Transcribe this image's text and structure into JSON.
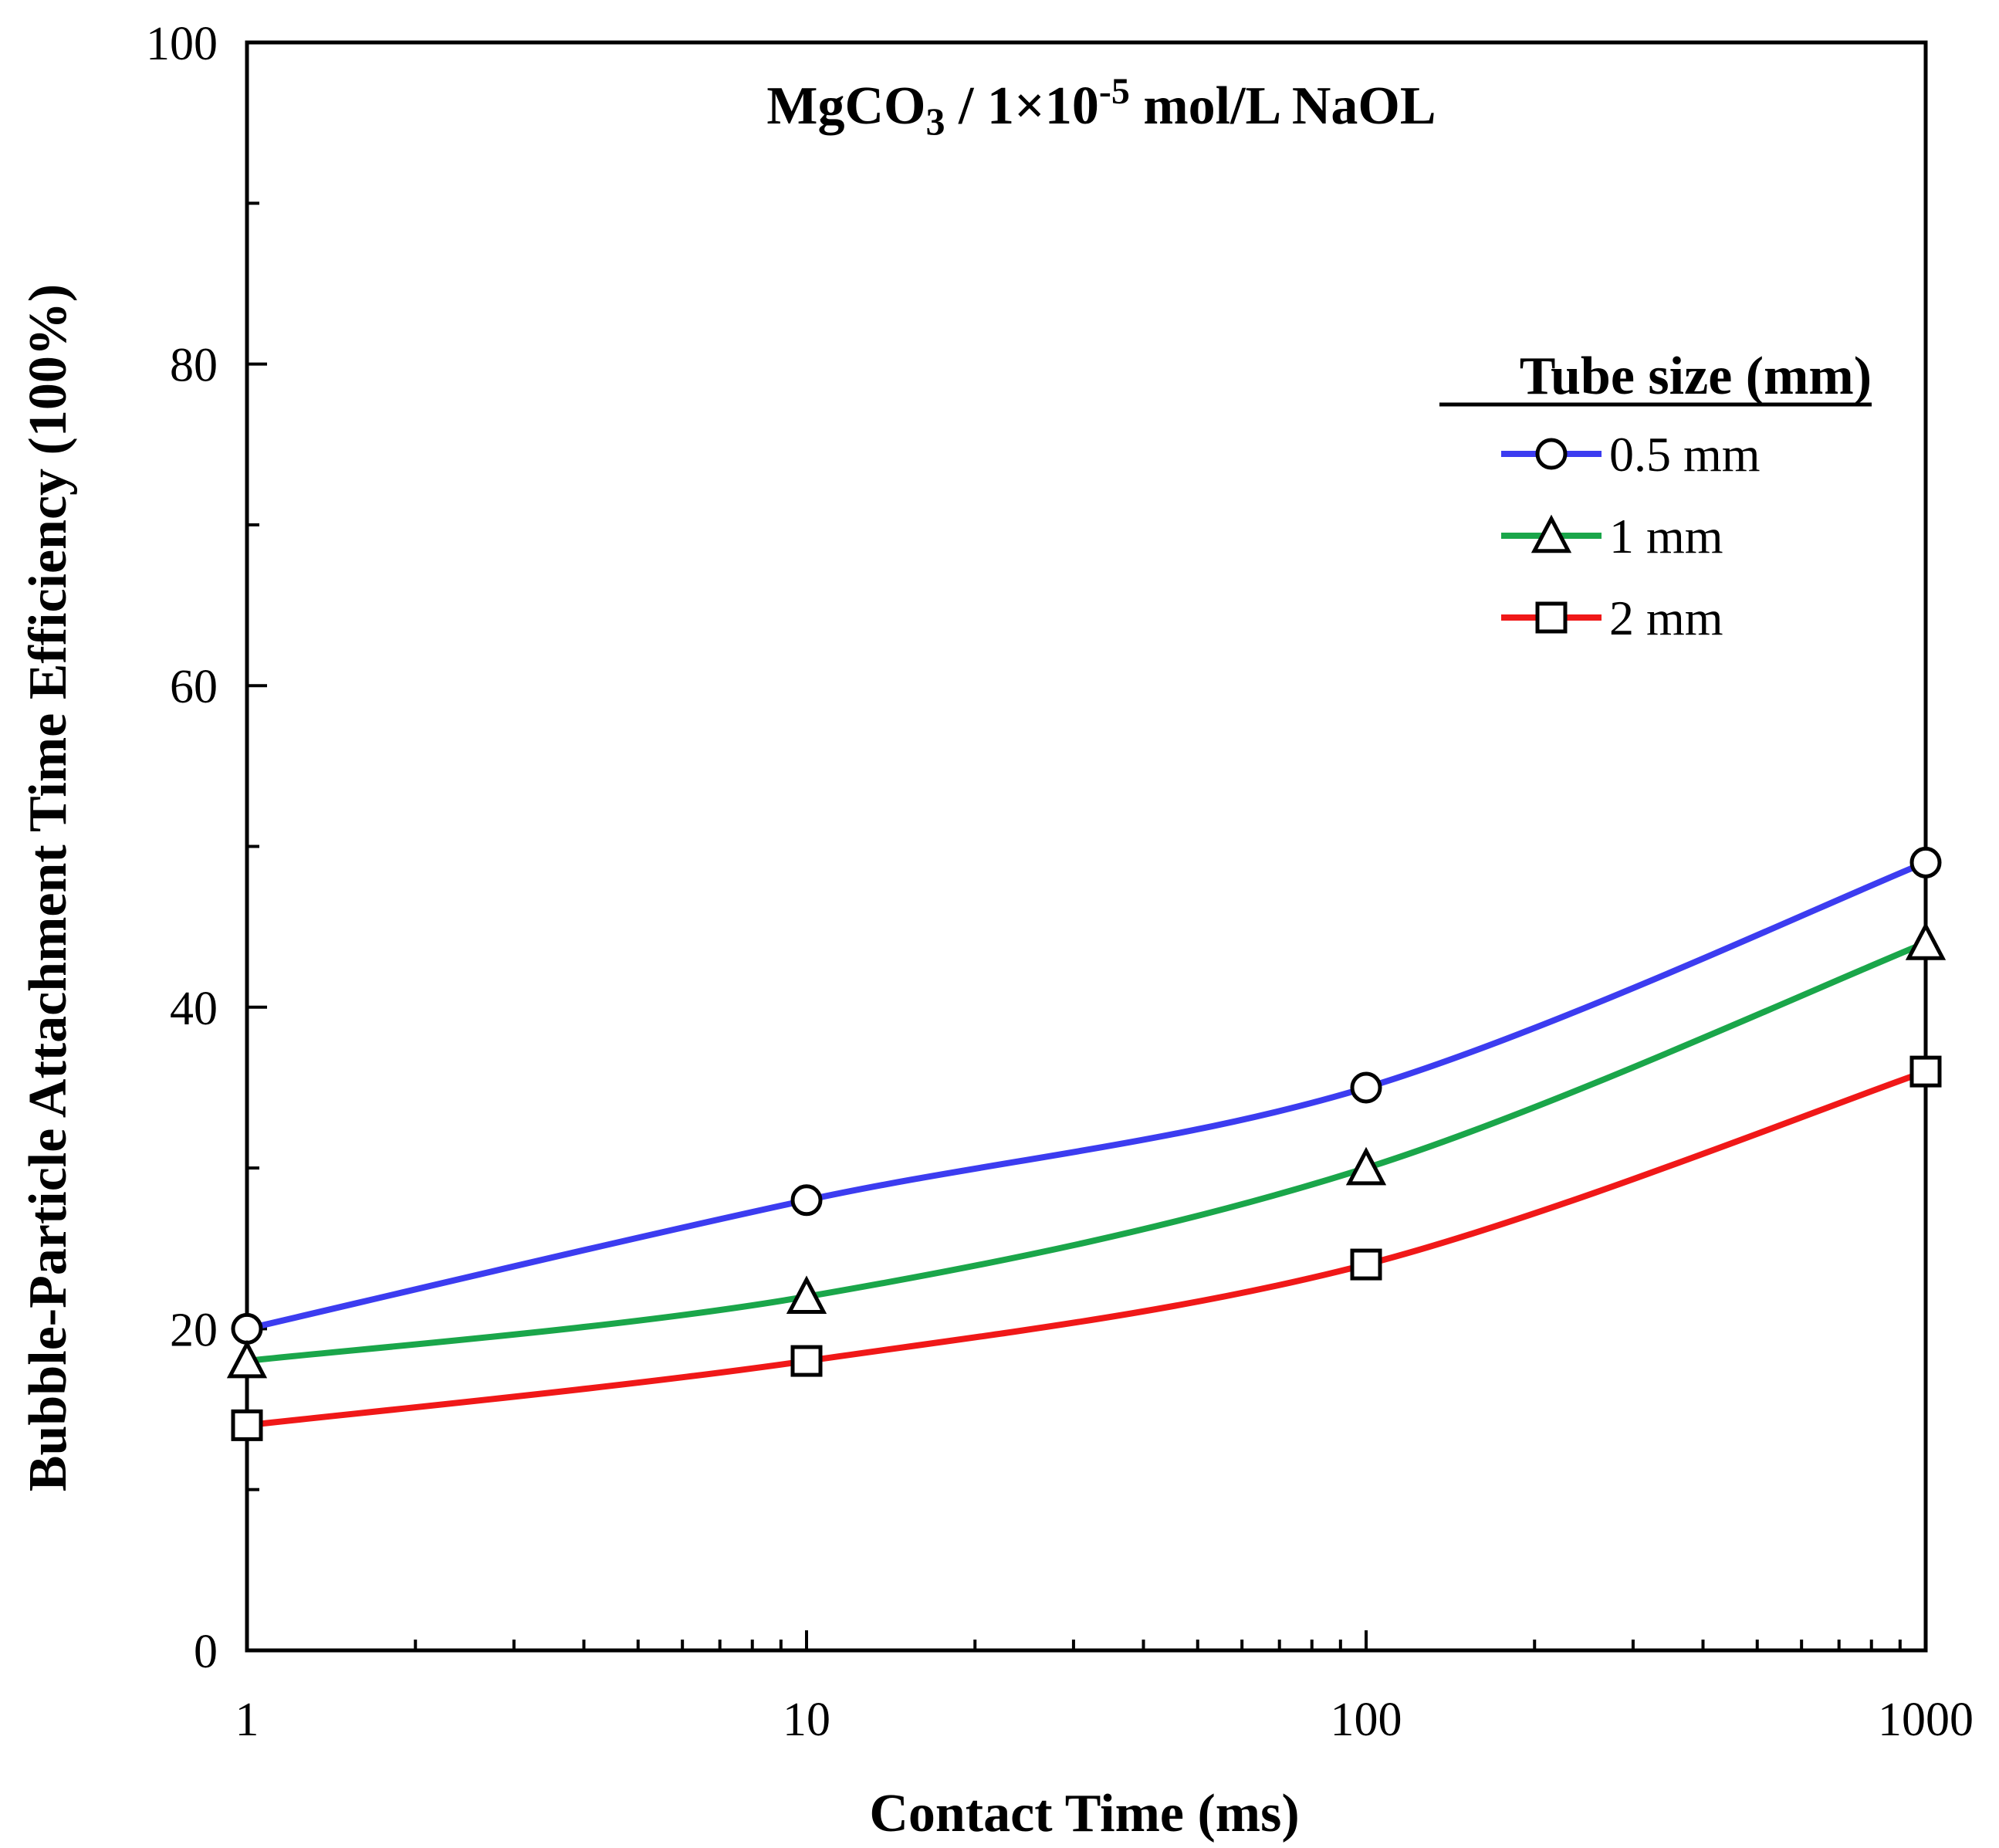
{
  "chart_data": {
    "type": "line",
    "title": {
      "compound": "MgCO",
      "subscript": "3",
      "mid": " / 1×10",
      "exponent": "-5",
      "tail": " mol/L NaOL"
    },
    "xlabel": "Contact Time (ms)",
    "ylabel": "Bubble-Particle Attachment Time Efficiency (100%)",
    "xscale": "log",
    "xlim": [
      1,
      1000
    ],
    "ylim": [
      0,
      100
    ],
    "x": [
      1,
      10,
      100,
      1000
    ],
    "x_ticks": [
      "1",
      "10",
      "100",
      "1000"
    ],
    "y_ticks": [
      "0",
      "20",
      "40",
      "60",
      "80",
      "100"
    ],
    "y_minor_step": 10,
    "grid": false,
    "legend": {
      "title": "Tube size (mm)",
      "placement": "top-right"
    },
    "series": [
      {
        "name": "0.5 mm",
        "marker": "circle",
        "color": "#3c3cf0",
        "values": [
          20,
          28,
          35,
          49
        ]
      },
      {
        "name": "1 mm",
        "marker": "triangle",
        "color": "#1aa64a",
        "values": [
          18,
          22,
          30,
          44
        ]
      },
      {
        "name": "2 mm",
        "marker": "square",
        "color": "#f01818",
        "values": [
          14,
          18,
          24,
          36
        ]
      }
    ]
  }
}
